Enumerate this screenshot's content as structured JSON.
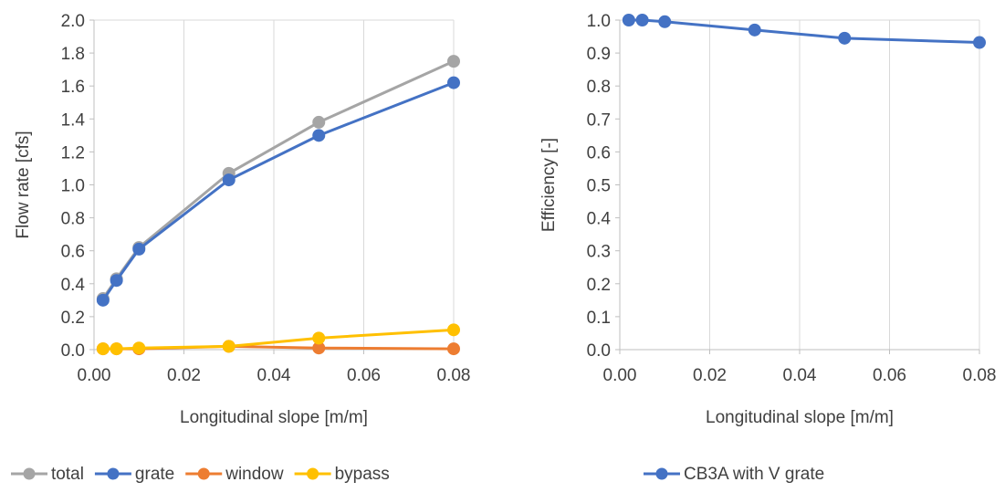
{
  "chart_data": [
    {
      "type": "line",
      "title": "",
      "xlabel": "Longitudinal slope [m/m]",
      "ylabel": "Flow rate [cfs]",
      "xlim": [
        0,
        0.08
      ],
      "ylim": [
        0,
        2.0
      ],
      "x_ticks": [
        "0.00",
        "0.02",
        "0.04",
        "0.06",
        "0.08"
      ],
      "y_ticks": [
        "0.0",
        "0.2",
        "0.4",
        "0.6",
        "0.8",
        "1.0",
        "1.2",
        "1.4",
        "1.6",
        "1.8",
        "2.0"
      ],
      "grid": "vertical",
      "legend_position": "bottom",
      "x": [
        0.002,
        0.005,
        0.01,
        0.03,
        0.05,
        0.08
      ],
      "series": [
        {
          "name": "total",
          "color": "#A5A5A5",
          "values": [
            0.31,
            0.43,
            0.62,
            1.07,
            1.38,
            1.75
          ]
        },
        {
          "name": "grate",
          "color": "#4472C4",
          "values": [
            0.3,
            0.42,
            0.61,
            1.03,
            1.3,
            1.62
          ]
        },
        {
          "name": "window",
          "color": "#ED7D31",
          "values": [
            0.005,
            0.005,
            0.005,
            0.02,
            0.01,
            0.005
          ]
        },
        {
          "name": "bypass",
          "color": "#FFC000",
          "values": [
            0.005,
            0.005,
            0.01,
            0.02,
            0.07,
            0.12
          ]
        }
      ]
    },
    {
      "type": "line",
      "title": "",
      "xlabel": "Longitudinal slope [m/m]",
      "ylabel": "Efficiency [-]",
      "xlim": [
        0,
        0.08
      ],
      "ylim": [
        0,
        1.0
      ],
      "x_ticks": [
        "0.00",
        "0.02",
        "0.04",
        "0.06",
        "0.08"
      ],
      "y_ticks": [
        "0.0",
        "0.1",
        "0.2",
        "0.3",
        "0.4",
        "0.5",
        "0.6",
        "0.7",
        "0.8",
        "0.9",
        "1.0"
      ],
      "grid": "vertical",
      "legend_position": "bottom",
      "x": [
        0.002,
        0.005,
        0.01,
        0.03,
        0.05,
        0.08
      ],
      "series": [
        {
          "name": "CB3A with V grate",
          "color": "#4472C4",
          "values": [
            1.0,
            1.0,
            0.995,
            0.97,
            0.945,
            0.932
          ]
        }
      ]
    }
  ]
}
